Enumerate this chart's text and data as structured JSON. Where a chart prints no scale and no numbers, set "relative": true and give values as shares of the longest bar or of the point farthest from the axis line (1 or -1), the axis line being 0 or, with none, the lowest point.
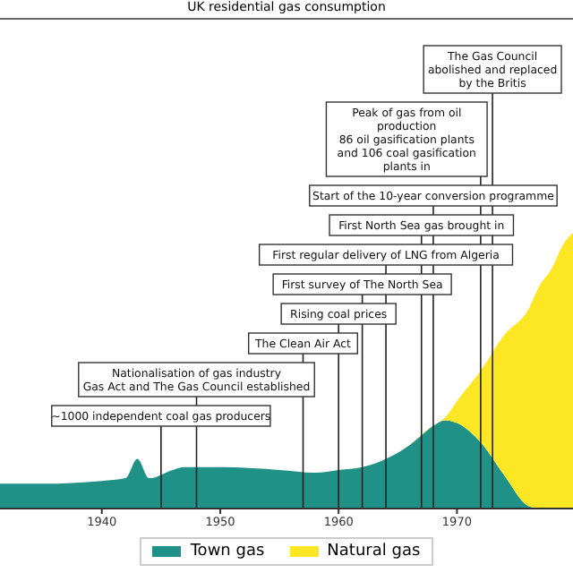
{
  "chart_data": {
    "type": "area",
    "title": "UK residential gas consumption",
    "stacked": true,
    "relative": true,
    "x": [
      1931.4,
      1935,
      1940,
      1942,
      1943,
      1944,
      1946,
      1947,
      1950,
      1955,
      1958,
      1960,
      1962,
      1964,
      1966,
      1968,
      1969,
      1970,
      1972,
      1974,
      1976,
      1977,
      1978,
      1979,
      1979.8
    ],
    "series": [
      {
        "name": "Town gas",
        "color": "#1f9187",
        "values": [
          0.09,
          0.09,
          0.1,
          0.11,
          0.18,
          0.11,
          0.14,
          0.15,
          0.15,
          0.14,
          0.13,
          0.14,
          0.15,
          0.18,
          0.23,
          0.3,
          0.32,
          0.31,
          0.24,
          0.12,
          0.01,
          0,
          0,
          0,
          0
        ]
      },
      {
        "name": "Natural gas",
        "color": "#fde725",
        "values": [
          0,
          0,
          0,
          0,
          0,
          0,
          0,
          0,
          0,
          0,
          0,
          0,
          0,
          0,
          0,
          0,
          0.01,
          0.08,
          0.26,
          0.51,
          0.71,
          0.81,
          0.87,
          0.96,
          1
        ]
      }
    ],
    "xlim": [
      1931.4,
      1979.8
    ],
    "xticks": [
      1940,
      1950,
      1960,
      1970
    ],
    "ref_lines": [
      {
        "axis": "x",
        "value": 1945,
        "label": "~1000 independent coal gas producers"
      },
      {
        "axis": "x",
        "value": 1948,
        "label": "Nationalisation of gas industry\nGas Act and The Gas Council established"
      },
      {
        "axis": "x",
        "value": 1957,
        "label": "The Clean Air Act"
      },
      {
        "axis": "x",
        "value": 1960,
        "label": "Rising coal prices"
      },
      {
        "axis": "x",
        "value": 1962,
        "label": "First survey of The North Sea"
      },
      {
        "axis": "x",
        "value": 1964,
        "label": "First regular delivery of LNG from Algeria"
      },
      {
        "axis": "x",
        "value": 1967,
        "label": "First North Sea gas brought in"
      },
      {
        "axis": "x",
        "value": 1968,
        "label": "Start of the 10-year conversion programme"
      },
      {
        "axis": "x",
        "value": 1972,
        "label": "Peak of gas from oil production\n86 oil gasification plants and 106 coal gasification plants in"
      },
      {
        "axis": "x",
        "value": 1973,
        "label": "The Gas Council abolished and replaced by the Britis"
      }
    ],
    "legend": "bottom",
    "grid": false
  }
}
